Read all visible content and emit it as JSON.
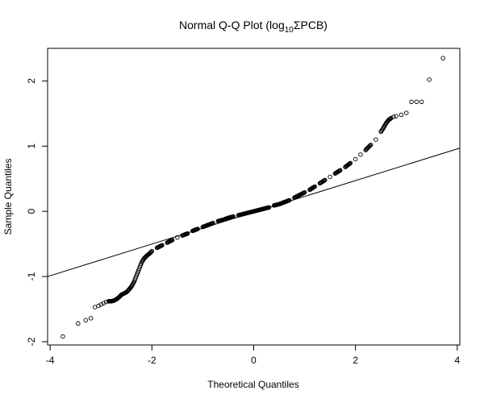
{
  "chart_data": {
    "type": "scatter",
    "title": "Normal Q-Q Plot (log",
    "title_sub": "10",
    "title_rest": "ΣPCB)",
    "xlabel": "Theoretical Quantiles",
    "ylabel": "Sample Quantiles",
    "xlim": [
      -4.05,
      4.05
    ],
    "ylim": [
      -2.05,
      2.5
    ],
    "xticks": [
      -4,
      -2,
      0,
      2,
      4
    ],
    "yticks": [
      -2,
      -1,
      0,
      1,
      2
    ],
    "grid": false,
    "legend": "none",
    "point_color": "#000000",
    "reference_line": {
      "x": [
        -4.05,
        4.05
      ],
      "y": [
        -1.0,
        0.97
      ]
    },
    "series": [
      {
        "x": [
          -3.75,
          -3.45,
          -3.3,
          -3.2,
          -3.12,
          -3.05,
          -3.0,
          -2.95,
          -2.9,
          -2.85,
          -2.8,
          -2.75,
          -2.7,
          -2.65,
          -2.6,
          -2.55,
          -2.5,
          -2.45,
          -2.4,
          -2.35,
          -2.3,
          -2.25,
          -2.2,
          -2.15,
          -2.1,
          -2.05,
          -2.0,
          -1.9,
          -1.8,
          -1.7,
          -1.6,
          -1.5,
          -1.4,
          -1.3,
          -1.2,
          -1.1,
          -1.0,
          -0.9,
          -0.8,
          -0.7,
          -0.6,
          -0.5,
          -0.4,
          -0.3,
          -0.2,
          -0.1,
          0.0,
          0.1,
          0.2,
          0.3,
          0.4,
          0.5,
          0.6,
          0.7,
          0.8,
          0.9,
          1.0,
          1.1,
          1.2,
          1.3,
          1.4,
          1.5,
          1.6,
          1.7,
          1.8,
          1.9,
          2.0,
          2.1,
          2.2,
          2.3,
          2.4,
          2.5,
          2.55,
          2.6,
          2.65,
          2.7,
          2.75,
          2.8,
          2.9,
          3.0,
          3.1,
          3.2,
          3.3,
          3.45,
          3.72
        ],
        "y": [
          -1.92,
          -1.72,
          -1.67,
          -1.64,
          -1.47,
          -1.45,
          -1.43,
          -1.41,
          -1.39,
          -1.38,
          -1.38,
          -1.37,
          -1.35,
          -1.32,
          -1.28,
          -1.26,
          -1.24,
          -1.2,
          -1.15,
          -1.08,
          -0.98,
          -0.88,
          -0.78,
          -0.72,
          -0.68,
          -0.65,
          -0.61,
          -0.56,
          -0.52,
          -0.48,
          -0.44,
          -0.4,
          -0.37,
          -0.34,
          -0.3,
          -0.27,
          -0.24,
          -0.21,
          -0.18,
          -0.15,
          -0.13,
          -0.1,
          -0.08,
          -0.06,
          -0.04,
          -0.02,
          0.0,
          0.02,
          0.04,
          0.06,
          0.09,
          0.11,
          0.14,
          0.17,
          0.21,
          0.25,
          0.29,
          0.33,
          0.38,
          0.43,
          0.48,
          0.53,
          0.58,
          0.63,
          0.68,
          0.74,
          0.8,
          0.87,
          0.94,
          1.02,
          1.1,
          1.22,
          1.28,
          1.35,
          1.4,
          1.43,
          1.45,
          1.46,
          1.48,
          1.51,
          1.68,
          1.68,
          1.68,
          2.02,
          2.35
        ]
      }
    ]
  }
}
